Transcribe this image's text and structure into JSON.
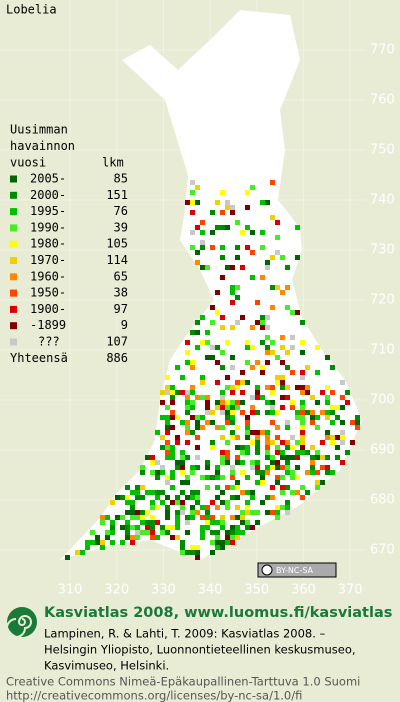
{
  "title": "Lobelia",
  "legend": {
    "heading": [
      "Uusimman",
      "havainnon",
      "vuosi"
    ],
    "count_heading": "lkm",
    "items": [
      {
        "label": "2005-",
        "count": 85,
        "color": "#006400"
      },
      {
        "label": "2000-",
        "count": 151,
        "color": "#008c00"
      },
      {
        "label": "1995-",
        "count": 76,
        "color": "#00c000"
      },
      {
        "label": "1990-",
        "count": 39,
        "color": "#44ee22"
      },
      {
        "label": "1980-",
        "count": 105,
        "color": "#ffff00"
      },
      {
        "label": "1970-",
        "count": 114,
        "color": "#f0d000"
      },
      {
        "label": "1960-",
        "count": 65,
        "color": "#ff8800"
      },
      {
        "label": "1950-",
        "count": 38,
        "color": "#ff4400"
      },
      {
        "label": "1900-",
        "count": 97,
        "color": "#dd0000"
      },
      {
        "label": "-1899",
        "count": 9,
        "color": "#800000"
      },
      {
        "label": "???",
        "count": 107,
        "color": "#c8c8c8"
      }
    ],
    "total_label": "Yhteensä",
    "total": 886
  },
  "grid": {
    "y_labels": [
      770,
      760,
      750,
      740,
      730,
      720,
      710,
      700,
      690,
      680,
      670
    ],
    "x_labels": [
      310,
      320,
      330,
      340,
      350,
      360,
      370
    ]
  },
  "badge": "BY-NC-SA",
  "footer": {
    "site": "Kasviatlas 2008, www.luomus.fi/kasviatlas",
    "citation": [
      "Lampinen, R. & Lahti, T. 2009: Kasviatlas 2008. –",
      "Helsingin Yliopisto, Luonnontieteellinen keskusmuseo,",
      "Kasvimuseo, Helsinki."
    ],
    "license": [
      "Creative Commons Nimeä-Epäkaupallinen-Tarttuva 1.0 Suomi",
      "http://creativecommons.org/licenses/by-nc-sa/1.0/fi"
    ]
  }
}
